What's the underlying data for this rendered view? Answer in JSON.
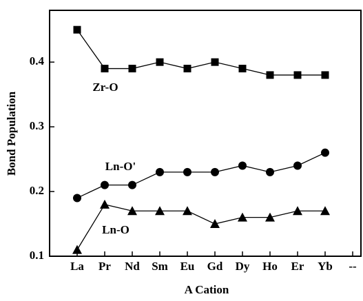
{
  "chart_data": {
    "type": "line",
    "x_label": "A Cation",
    "y_label": "Bond Population",
    "categories": [
      "La",
      "Pr",
      "Nd",
      "Sm",
      "Eu",
      "Gd",
      "Dy",
      "Ho",
      "Er",
      "Yb",
      "--"
    ],
    "series": [
      {
        "name": "Zr-O",
        "color": "#000000",
        "marker": "square",
        "values": [
          0.45,
          0.39,
          0.39,
          0.4,
          0.39,
          0.4,
          0.39,
          0.38,
          0.38,
          0.38,
          null
        ]
      },
      {
        "name": "Ln-O'",
        "color": "#000000",
        "marker": "circle",
        "values": [
          0.19,
          0.21,
          0.21,
          0.23,
          0.23,
          0.23,
          0.24,
          0.23,
          0.24,
          0.26,
          null
        ]
      },
      {
        "name": "Ln-O",
        "color": "#000000",
        "marker": "triangle",
        "values": [
          0.11,
          0.18,
          0.17,
          0.17,
          0.17,
          0.15,
          0.16,
          0.16,
          0.17,
          0.17,
          null
        ]
      }
    ],
    "ylim": [
      0.1,
      0.48
    ],
    "yticks": [
      0.1,
      0.2,
      0.3,
      0.4
    ],
    "grid": false
  }
}
